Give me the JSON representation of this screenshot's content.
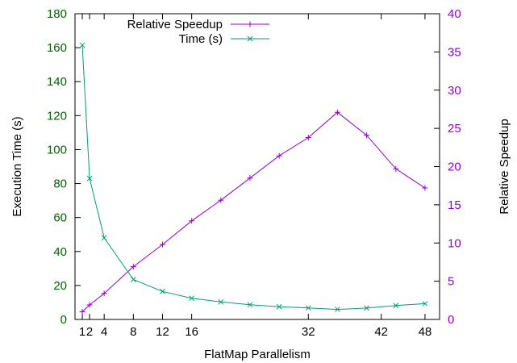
{
  "chart_data": {
    "type": "line",
    "xlabel": "FlatMap Parallelism",
    "ylabel_left": "Execution Time (s)",
    "ylabel_right": "Relative Speedup",
    "xlim": [
      0,
      50
    ],
    "ylim_left": [
      0,
      180
    ],
    "ylim_right": [
      0,
      40
    ],
    "x_ticks": [
      1,
      2,
      4,
      8,
      12,
      16,
      32,
      42,
      48
    ],
    "y_ticks_left": [
      0,
      20,
      40,
      60,
      80,
      100,
      120,
      140,
      160,
      180
    ],
    "y_ticks_right": [
      0,
      5,
      10,
      15,
      20,
      25,
      30,
      35,
      40
    ],
    "grid": false,
    "legend_position": "top-center",
    "colors": {
      "left_axis": "#006400",
      "right_axis": "#9400d3",
      "frame": "#000000"
    },
    "series": [
      {
        "name": "Relative Speedup",
        "axis": "right",
        "marker": "plus",
        "color": "#9400d3",
        "x": [
          1,
          2,
          4,
          8,
          12,
          16,
          20,
          24,
          28,
          32,
          36,
          40,
          44,
          48
        ],
        "y": [
          1.0,
          1.9,
          3.4,
          6.9,
          9.8,
          12.9,
          15.6,
          18.5,
          21.4,
          23.8,
          27.1,
          24.1,
          19.7,
          17.2
        ]
      },
      {
        "name": "Time (s)",
        "axis": "left",
        "marker": "x",
        "color": "#009e73",
        "x": [
          1,
          2,
          4,
          8,
          12,
          16,
          20,
          24,
          28,
          32,
          36,
          40,
          44,
          48
        ],
        "y": [
          161.5,
          83,
          48,
          23.5,
          16.5,
          12.5,
          10.3,
          8.7,
          7.5,
          6.8,
          5.9,
          6.7,
          8.2,
          9.3
        ]
      }
    ]
  }
}
